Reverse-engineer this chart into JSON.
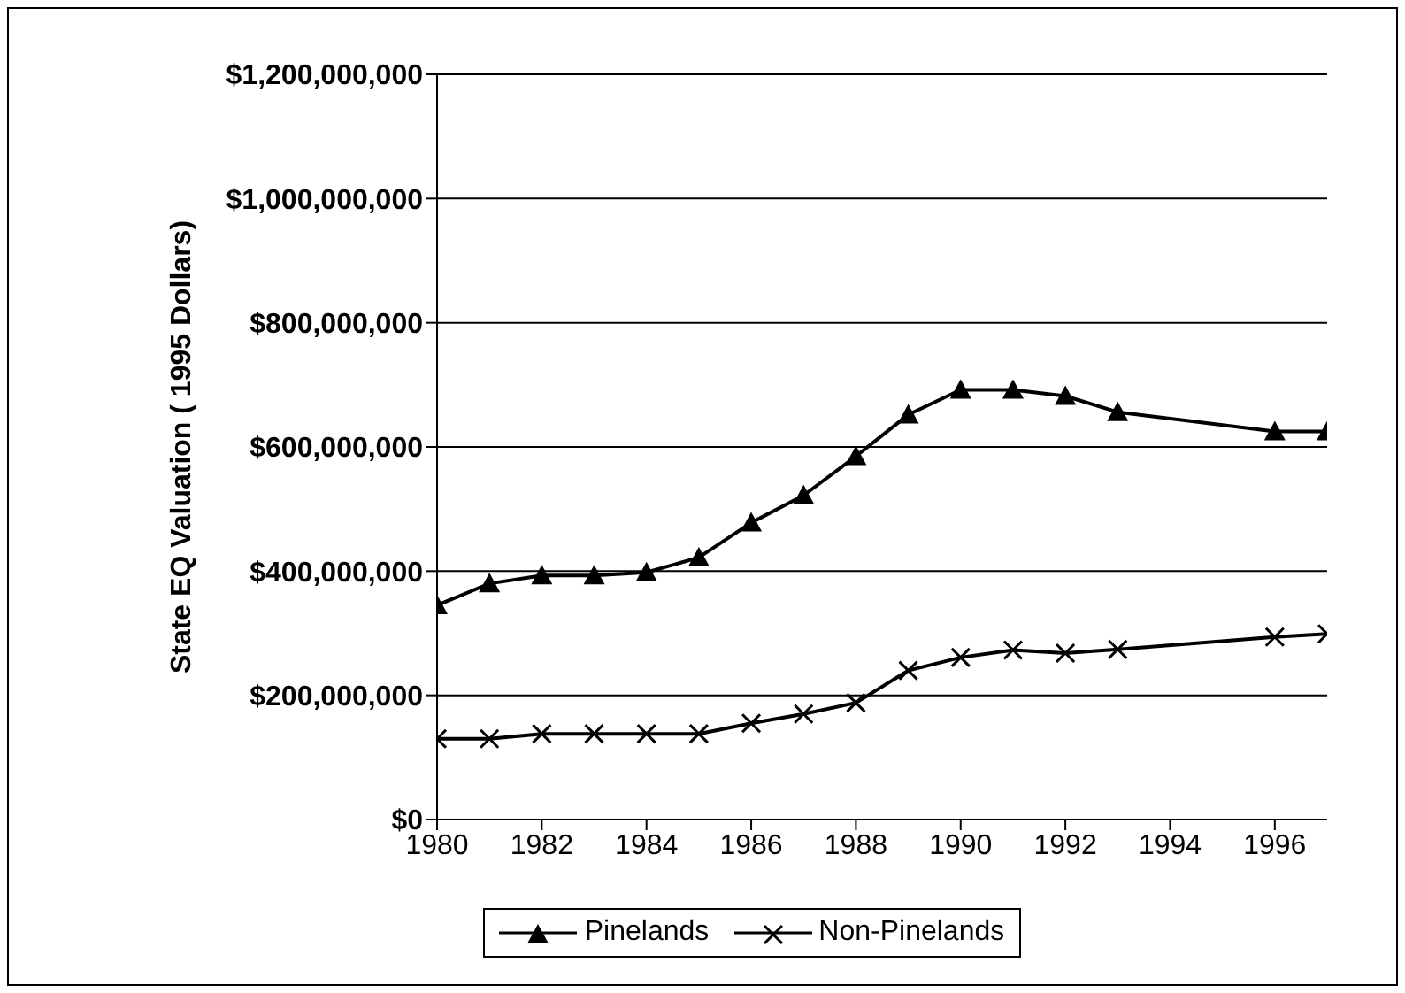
{
  "chart_data": {
    "type": "line",
    "ylabel": "State EQ Valuation ( 1995 Dollars)",
    "x": [
      1980,
      1981,
      1982,
      1983,
      1984,
      1985,
      1986,
      1987,
      1988,
      1989,
      1990,
      1991,
      1992,
      1993,
      1996,
      1997
    ],
    "series": [
      {
        "name": "Pinelands",
        "color": "#000000",
        "marker": "triangle",
        "values": [
          345000000,
          380000000,
          393000000,
          393000000,
          398000000,
          422000000,
          478000000,
          522000000,
          585000000,
          652000000,
          692000000,
          692000000,
          682000000,
          656000000,
          625000000,
          625000000
        ]
      },
      {
        "name": "Non-Pinelands",
        "color": "#000000",
        "marker": "cross",
        "values": [
          130000000,
          130000000,
          138000000,
          138000000,
          138000000,
          138000000,
          155000000,
          170000000,
          188000000,
          240000000,
          261000000,
          273000000,
          268000000,
          274000000,
          294000000,
          299000000
        ]
      }
    ],
    "xlim": [
      1980,
      1997
    ],
    "xticks": [
      1980,
      1982,
      1984,
      1986,
      1988,
      1990,
      1992,
      1994,
      1996
    ],
    "ylim": [
      0,
      1200000000
    ],
    "yticks": [
      {
        "value": 0,
        "label": "$0"
      },
      {
        "value": 200000000,
        "label": "$200,000,000"
      },
      {
        "value": 400000000,
        "label": "$400,000,000"
      },
      {
        "value": 600000000,
        "label": "$600,000,000"
      },
      {
        "value": 800000000,
        "label": "$800,000,000"
      },
      {
        "value": 1000000000,
        "label": "$1,000,000,000"
      },
      {
        "value": 1200000000,
        "label": "$1,200,000,000"
      }
    ],
    "grid": "y",
    "legend": "bottom",
    "line_style": "solid"
  }
}
